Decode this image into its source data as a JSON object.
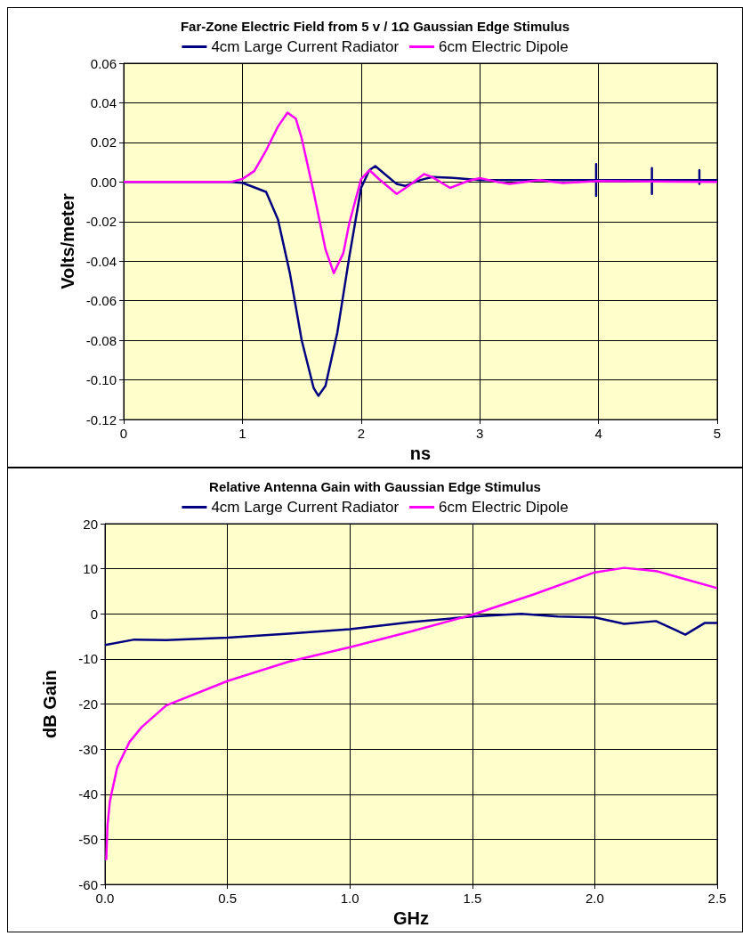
{
  "chart_data": [
    {
      "type": "line",
      "title": "Far-Zone Electric Field from 5 v / 1Ω Gaussian Edge Stimulus",
      "xlabel": "ns",
      "ylabel": "Volts/meter",
      "xlim": [
        0,
        5
      ],
      "ylim": [
        -0.12,
        0.06
      ],
      "xticks": [
        0,
        1,
        2,
        3,
        4,
        5
      ],
      "yticks": [
        {
          "value": -0.12,
          "label": "-0.12"
        },
        {
          "value": -0.1,
          "label": "-0.10"
        },
        {
          "value": -0.08,
          "label": "-0.08"
        },
        {
          "value": -0.06,
          "label": "-0.06"
        },
        {
          "value": -0.04,
          "label": "-0.04"
        },
        {
          "value": -0.02,
          "label": "-0.02"
        },
        {
          "value": 0,
          "label": "0.00"
        },
        {
          "value": 0.02,
          "label": "0.02"
        },
        {
          "value": 0.04,
          "label": "0.04"
        },
        {
          "value": 0.06,
          "label": "0.06"
        }
      ],
      "grid": true,
      "legend": "top",
      "marker": "none",
      "line_style": "solid",
      "series": [
        {
          "name": "4cm Large Current Radiator",
          "color": "#000080",
          "x": [
            0,
            0.9,
            1,
            1.2,
            1.3,
            1.4,
            1.5,
            1.6,
            1.64,
            1.7,
            1.8,
            1.9,
            2,
            2.07,
            2.12,
            2.2,
            2.3,
            2.37,
            2.5,
            2.6,
            2.8,
            3,
            3.5,
            3.98,
            3.98,
            3.98,
            3.98,
            4.45,
            4.45,
            4.45,
            4.45,
            4.85,
            4.85,
            4.85,
            4.85,
            5
          ],
          "values": [
            0,
            0,
            -0.0004,
            -0.005,
            -0.019,
            -0.046,
            -0.08,
            -0.104,
            -0.108,
            -0.103,
            -0.076,
            -0.038,
            -0.003,
            0.006,
            0.008,
            0.004,
            -0.001,
            -0.002,
            0.001,
            0.0025,
            0.002,
            0.001,
            0.001,
            0.001,
            0.009,
            -0.007,
            0.001,
            0.001,
            0.007,
            -0.006,
            0.001,
            0.001,
            0.006,
            -0.001,
            0.001,
            0.001
          ]
        },
        {
          "name": "6cm Electric Dipole",
          "color": "#ff00ff",
          "x": [
            0,
            0.9,
            1,
            1.1,
            1.2,
            1.3,
            1.38,
            1.45,
            1.5,
            1.6,
            1.7,
            1.77,
            1.85,
            1.9,
            2,
            2.07,
            2.15,
            2.3,
            2.4,
            2.53,
            2.6,
            2.75,
            2.9,
            3,
            3.15,
            3.25,
            3.5,
            3.7,
            4,
            5
          ],
          "values": [
            0,
            0,
            0.0015,
            0.0055,
            0.016,
            0.028,
            0.035,
            0.032,
            0.022,
            -0.005,
            -0.034,
            -0.046,
            -0.036,
            -0.021,
            0.0015,
            0.006,
            0.0015,
            -0.006,
            -0.002,
            0.004,
            0.0025,
            -0.003,
            0.0005,
            0.002,
            0,
            -0.001,
            0.001,
            -0.0005,
            0.0005,
            0
          ]
        }
      ]
    },
    {
      "type": "line",
      "title": "Relative Antenna Gain with Gaussian Edge Stimulus",
      "xlabel": "GHz",
      "ylabel": "dB Gain",
      "xlim": [
        0,
        2.5
      ],
      "ylim": [
        -60,
        20
      ],
      "xticks": [
        {
          "value": 0,
          "label": "0.0"
        },
        {
          "value": 0.5,
          "label": "0.5"
        },
        {
          "value": 1,
          "label": "1.0"
        },
        {
          "value": 1.5,
          "label": "1.5"
        },
        {
          "value": 2,
          "label": "2.0"
        },
        {
          "value": 2.5,
          "label": "2.5"
        }
      ],
      "yticks": [
        -60,
        -50,
        -40,
        -30,
        -20,
        -10,
        0,
        10,
        20
      ],
      "grid": true,
      "legend": "top",
      "marker": "none",
      "line_style": "solid",
      "series": [
        {
          "name": "4cm Large Current Radiator",
          "color": "#000080",
          "x": [
            0,
            0.12,
            0.25,
            0.5,
            0.75,
            1,
            1.25,
            1.5,
            1.7,
            1.85,
            2,
            2.12,
            2.25,
            2.37,
            2.45,
            2.5
          ],
          "values": [
            -6.9,
            -5.7,
            -5.8,
            -5.3,
            -4.4,
            -3.4,
            -1.8,
            -0.6,
            0,
            -0.6,
            -0.8,
            -2.2,
            -1.6,
            -4.6,
            -2,
            -2
          ]
        },
        {
          "name": "6cm Electric Dipole",
          "color": "#ff00ff",
          "x": [
            0.005,
            0.01,
            0.02,
            0.05,
            0.1,
            0.15,
            0.25,
            0.5,
            0.75,
            1,
            1.25,
            1.5,
            1.75,
            2,
            2.12,
            2.25,
            2.5
          ],
          "values": [
            -54.6,
            -47,
            -41.5,
            -34,
            -28.4,
            -25.1,
            -20.3,
            -14.9,
            -10.6,
            -7.4,
            -3.9,
            -0.2,
            4.3,
            9.2,
            10.2,
            9.5,
            5.7
          ]
        }
      ]
    }
  ]
}
